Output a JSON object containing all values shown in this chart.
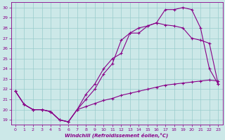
{
  "xlabel": "Windchill (Refroidissement éolien,°C)",
  "bg_color": "#cce8e8",
  "line_color": "#880088",
  "grid_color": "#99cccc",
  "xlim": [
    -0.5,
    23.5
  ],
  "ylim": [
    18.5,
    30.5
  ],
  "xticks": [
    0,
    1,
    2,
    3,
    4,
    5,
    6,
    7,
    8,
    9,
    10,
    11,
    12,
    13,
    14,
    15,
    16,
    17,
    18,
    19,
    20,
    21,
    22,
    23
  ],
  "yticks": [
    19,
    20,
    21,
    22,
    23,
    24,
    25,
    26,
    27,
    28,
    29,
    30
  ],
  "line1_x": [
    0,
    1,
    2,
    3,
    4,
    5,
    6,
    7,
    8,
    9,
    10,
    11,
    12,
    13,
    14,
    15,
    16,
    17,
    18,
    19,
    20,
    21,
    22,
    23
  ],
  "line1_y": [
    21.8,
    20.5,
    20.0,
    20.0,
    19.8,
    19.0,
    18.8,
    20.0,
    21.5,
    22.5,
    24.0,
    25.0,
    25.5,
    27.5,
    27.5,
    28.2,
    28.5,
    29.8,
    29.8,
    30.0,
    29.8,
    28.0,
    24.0,
    22.5
  ],
  "line2_x": [
    0,
    1,
    2,
    3,
    4,
    5,
    6,
    7,
    8,
    9,
    10,
    11,
    12,
    13,
    14,
    15,
    16,
    17,
    18,
    19,
    20,
    21,
    22,
    23
  ],
  "line2_y": [
    21.8,
    20.5,
    20.0,
    20.0,
    19.8,
    19.0,
    18.8,
    20.0,
    21.0,
    22.0,
    23.5,
    24.5,
    26.8,
    27.5,
    28.0,
    28.2,
    28.5,
    28.3,
    28.2,
    28.0,
    27.0,
    26.8,
    26.5,
    22.5
  ],
  "line3_x": [
    0,
    1,
    2,
    3,
    4,
    5,
    6,
    7,
    8,
    9,
    10,
    11,
    12,
    13,
    14,
    15,
    16,
    17,
    18,
    19,
    20,
    21,
    22,
    23
  ],
  "line3_y": [
    21.8,
    20.5,
    20.0,
    20.0,
    19.8,
    19.0,
    18.8,
    20.0,
    20.3,
    20.6,
    20.9,
    21.1,
    21.4,
    21.6,
    21.8,
    22.0,
    22.2,
    22.4,
    22.5,
    22.6,
    22.7,
    22.8,
    22.9,
    22.8
  ]
}
